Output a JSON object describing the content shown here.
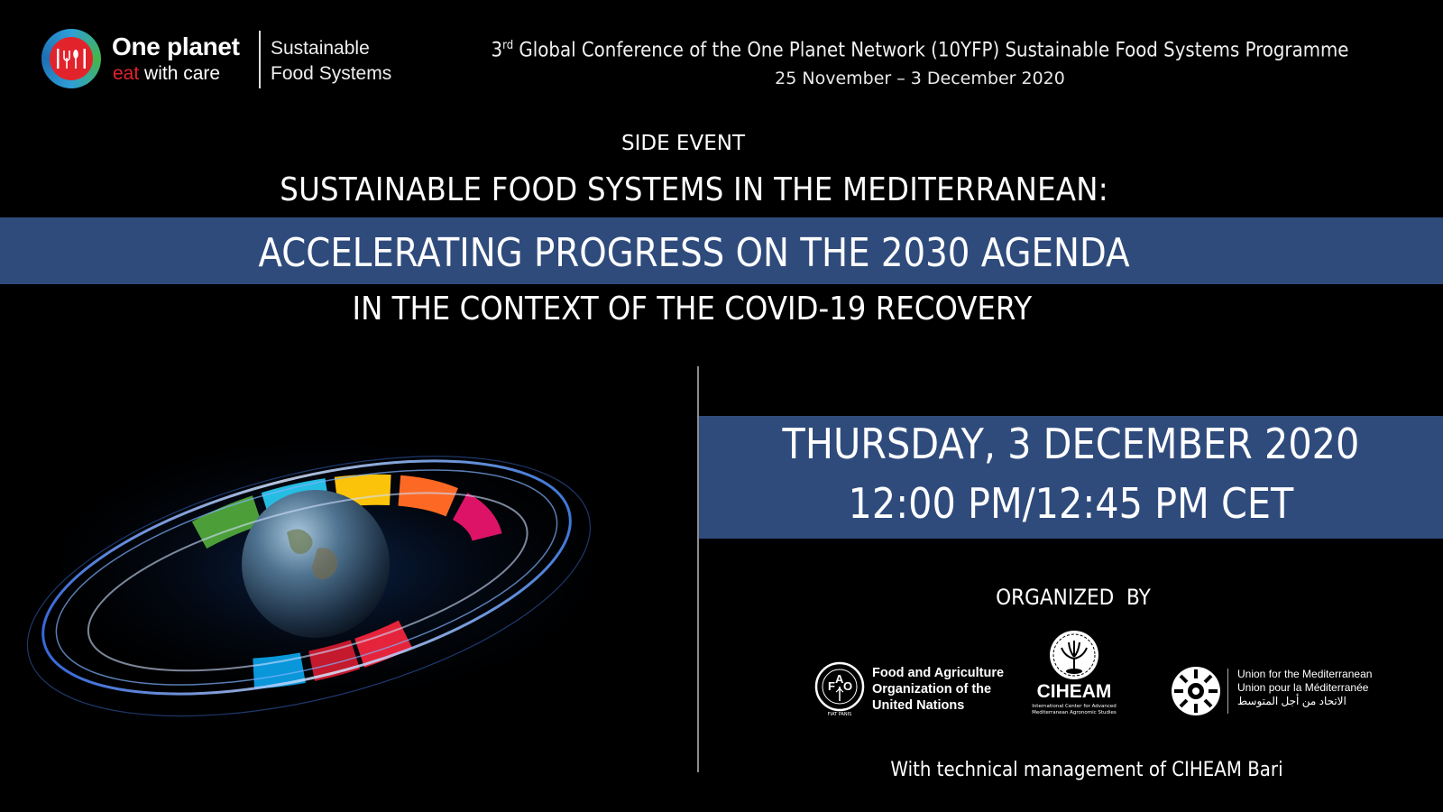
{
  "header": {
    "logo_title": "One planet",
    "logo_tagline_accent": "eat",
    "logo_tagline_rest": " with care",
    "programme_line1": "Sustainable",
    "programme_line2": "Food Systems"
  },
  "conference": {
    "ordinal_number": "3",
    "ordinal_suffix": "rd",
    "title_rest": " Global Conference of the One Planet Network (10YFP) Sustainable Food Systems Programme",
    "dates": "25 November – 3 December 2020"
  },
  "event": {
    "type": "SIDE EVENT",
    "title": "SUSTAINABLE FOOD SYSTEMS IN THE MEDITERRANEAN:",
    "subtitle": "ACCELERATING PROGRESS ON THE 2030 AGENDA",
    "context": "IN THE CONTEXT OF THE COVID-19 RECOVERY",
    "date": "THURSDAY, 3 DECEMBER 2020",
    "time": "12:00 PM/12:45 PM CET"
  },
  "organizers": {
    "label": "ORGANIZED  BY",
    "fao": {
      "line1": "Food and Agriculture",
      "line2": "Organization of the",
      "line3": "United Nations",
      "seal_text": "FIAT PANIS"
    },
    "ciheam": {
      "name": "CIHEAM",
      "fullname_line1": "International Center for Advanced",
      "fullname_line2": "Mediterranean Agronomic Studies"
    },
    "ufm": {
      "line1": "Union for the Mediterranean",
      "line2": "Union pour la Méditerranée",
      "line3": "الاتحاد من أجل المتوسط"
    },
    "technical_management": "With technical management of CIHEAM Bari"
  },
  "colors": {
    "background": "#000000",
    "band_blue": "#2f4b7c",
    "logo_red": "#e3232c",
    "text": "#ffffff"
  },
  "icons": {
    "logo_mark": "one-planet-globe-icon",
    "fao": "fao-emblem-icon",
    "ciheam": "ciheam-emblem-icon",
    "ufm": "ufm-emblem-icon",
    "illustration": "globe-sdg-ring-illustration"
  }
}
